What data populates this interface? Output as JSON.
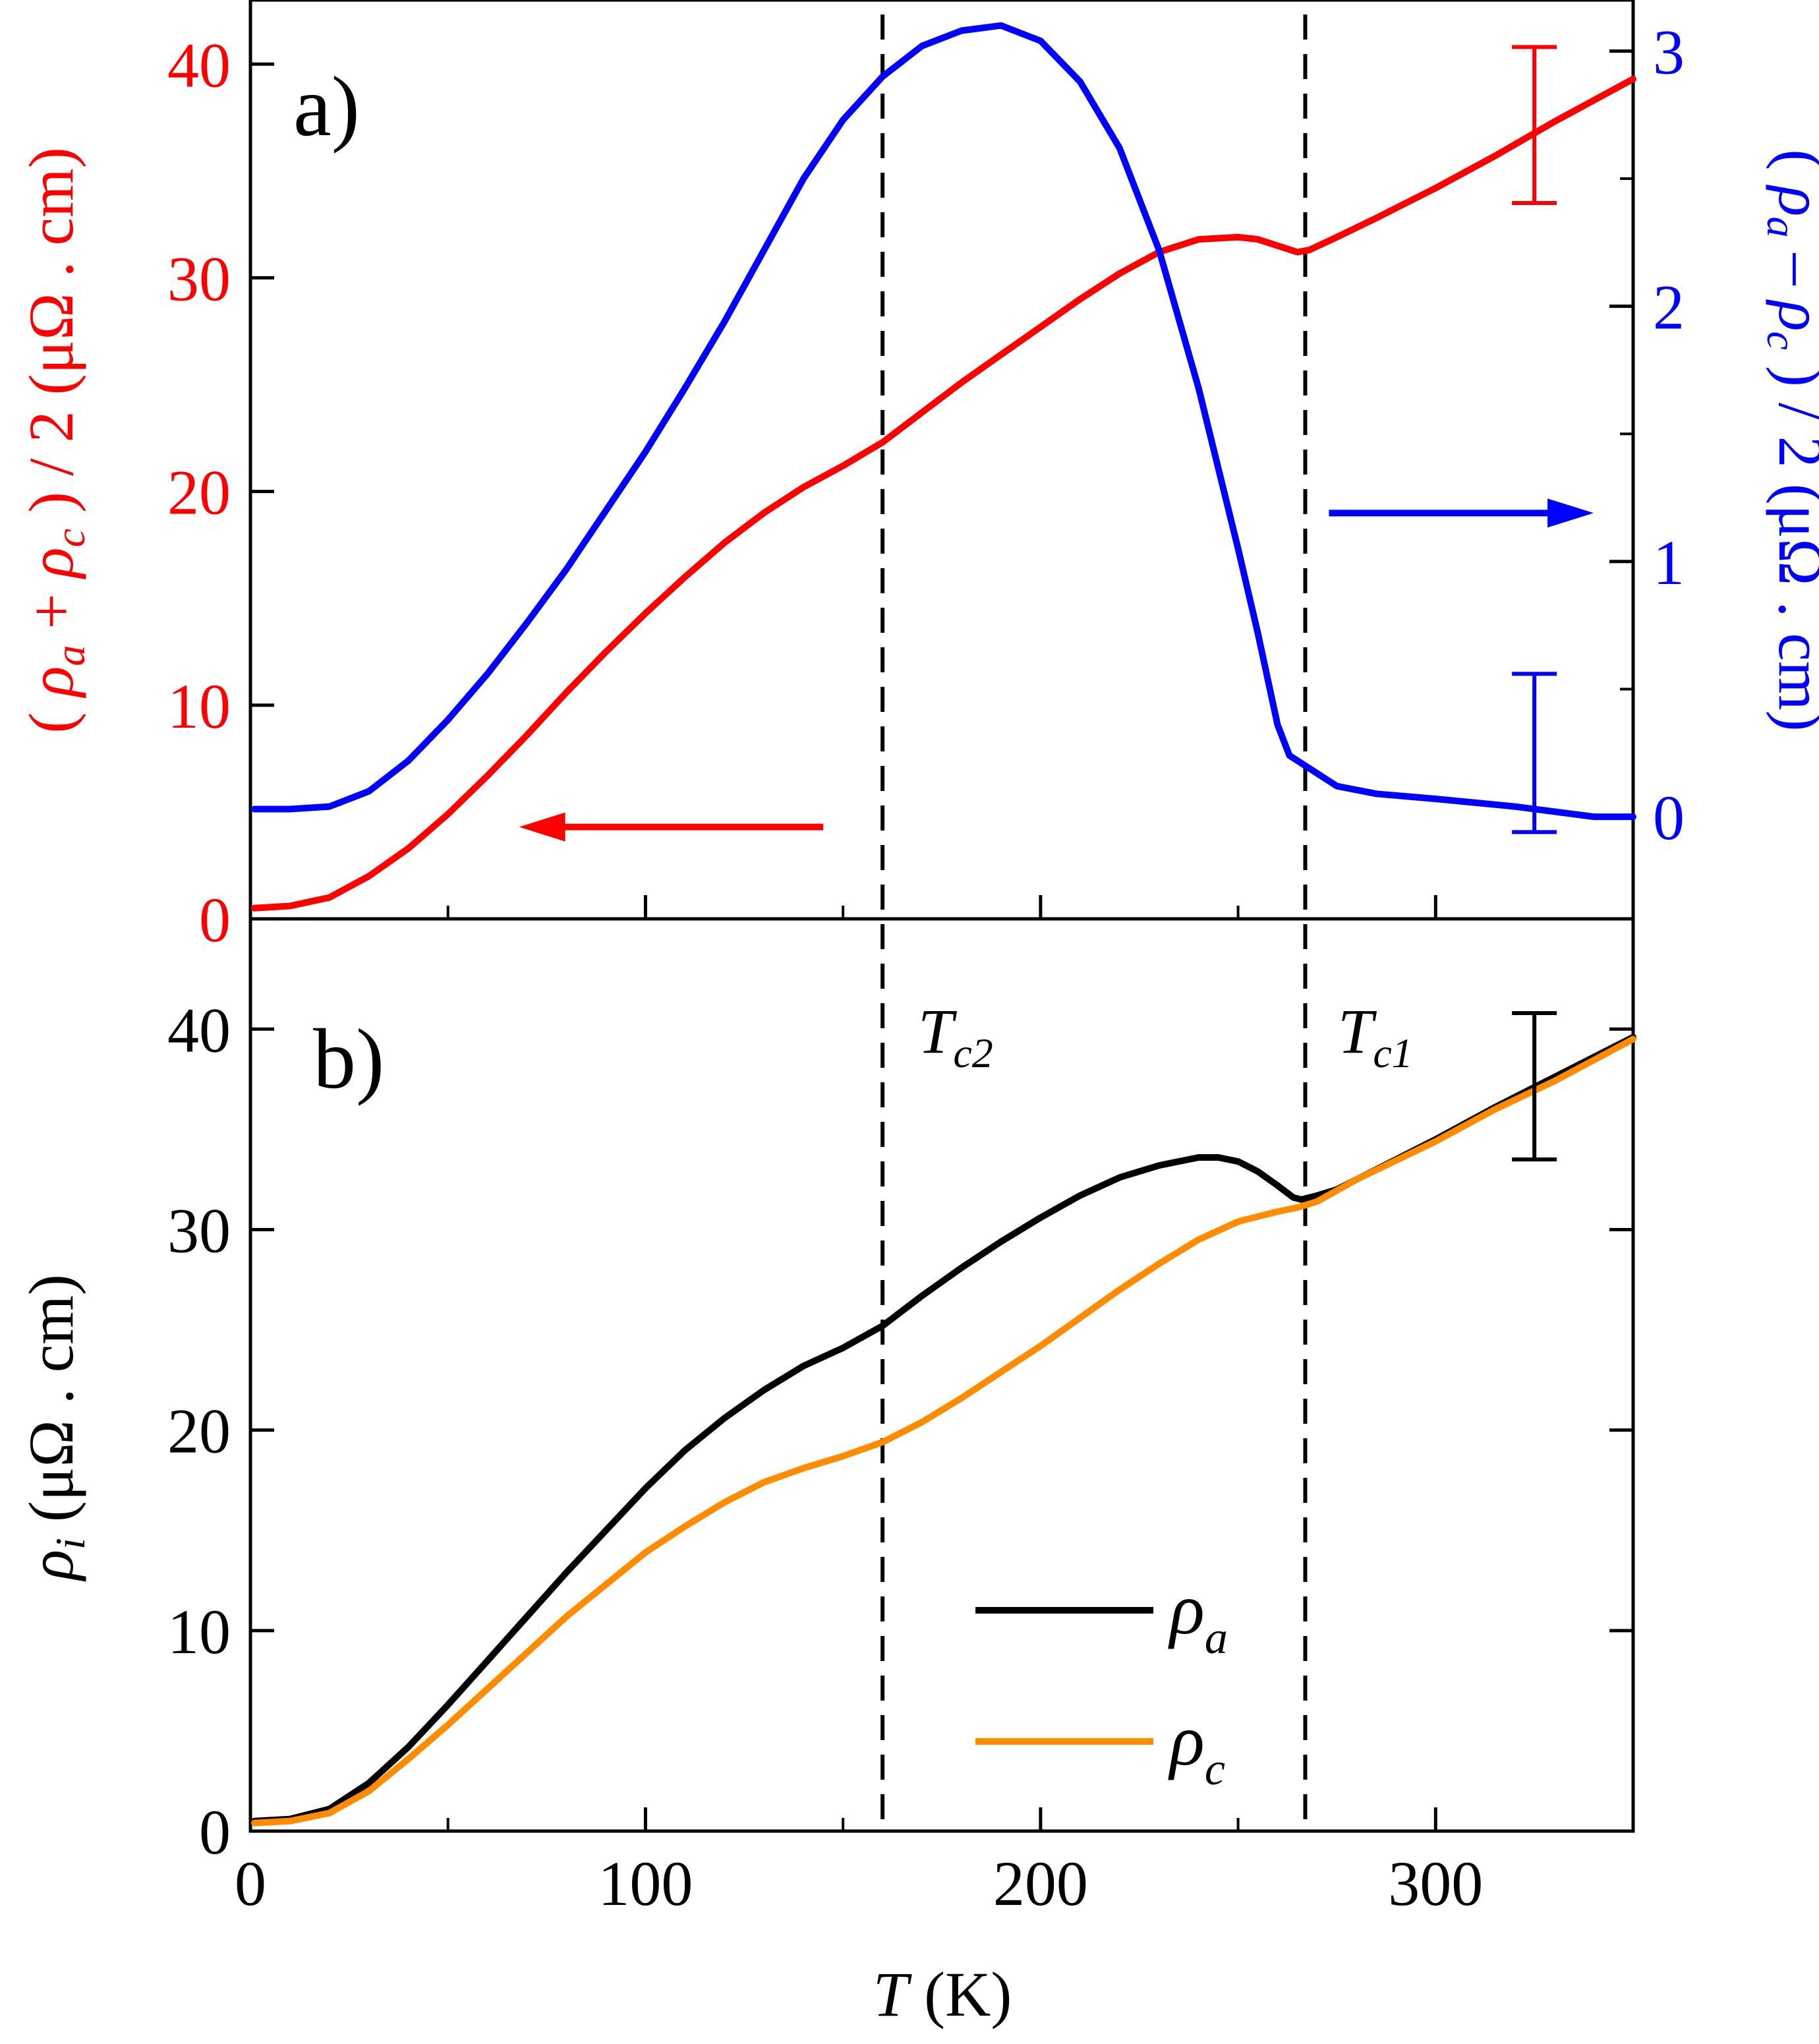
{
  "colors": {
    "red": "#ff0000",
    "blue": "#0000ff",
    "black": "#000000",
    "orange": "#ff8c00"
  },
  "chart_data": [
    {
      "panel": "a)",
      "type": "line",
      "x_range": [
        0,
        350
      ],
      "y_range_left": [
        0,
        43
      ],
      "y_range_right": [
        -0.4,
        3.2
      ],
      "left_axis": {
        "color": "red",
        "ticks": [
          "0",
          "10",
          "20",
          "30",
          "40"
        ],
        "label_parts": [
          "( ",
          "ρ",
          "a",
          " + ",
          "ρ",
          "c",
          " ) / 2 (μΩ . cm)"
        ]
      },
      "right_axis": {
        "color": "blue",
        "ticks": [
          "0",
          "1",
          "2",
          "3"
        ],
        "label_parts": [
          "( ",
          "ρ",
          "a",
          " – ",
          "ρ",
          "c",
          " ) / 2 (μΩ . cm)"
        ]
      },
      "series": [
        {
          "axis": "left",
          "color": "red",
          "x": [
            1,
            10,
            20,
            30,
            40,
            50,
            60,
            70,
            80,
            90,
            100,
            110,
            120,
            130,
            140,
            150,
            160,
            170,
            180,
            190,
            200,
            210,
            220,
            230,
            240,
            250,
            255,
            260,
            265,
            268,
            275,
            285,
            300,
            315,
            330,
            350
          ],
          "y": [
            0.5,
            0.6,
            1.0,
            2.0,
            3.3,
            4.9,
            6.7,
            8.6,
            10.6,
            12.5,
            14.3,
            16.0,
            17.6,
            19.0,
            20.2,
            21.2,
            22.3,
            23.7,
            25.1,
            26.4,
            27.7,
            29.0,
            30.2,
            31.2,
            31.8,
            31.9,
            31.8,
            31.5,
            31.2,
            31.3,
            31.9,
            32.8,
            34.2,
            35.7,
            37.3,
            39.3
          ]
        },
        {
          "axis": "right",
          "color": "blue",
          "x": [
            1,
            10,
            20,
            30,
            40,
            50,
            60,
            70,
            80,
            90,
            100,
            110,
            120,
            130,
            140,
            150,
            160,
            170,
            180,
            190,
            200,
            210,
            220,
            230,
            240,
            250,
            255,
            260,
            263,
            265,
            270,
            275,
            285,
            300,
            320,
            340,
            350
          ],
          "y": [
            0.03,
            0.03,
            0.04,
            0.1,
            0.22,
            0.38,
            0.56,
            0.76,
            0.97,
            1.2,
            1.43,
            1.68,
            1.94,
            2.22,
            2.5,
            2.73,
            2.9,
            3.02,
            3.08,
            3.1,
            3.04,
            2.88,
            2.62,
            2.22,
            1.68,
            1.05,
            0.72,
            0.36,
            0.24,
            0.22,
            0.17,
            0.12,
            0.09,
            0.07,
            0.04,
            0.0,
            0.0
          ]
        }
      ],
      "error_bars": [
        {
          "axis": "left",
          "color": "red",
          "x": 325,
          "low": 33.5,
          "high": 40.8
        },
        {
          "axis": "right",
          "color": "blue",
          "x": 325,
          "low": -0.06,
          "high": 0.56
        }
      ],
      "arrows": [
        {
          "axis": "left",
          "color": "red",
          "from": [
            145,
            4.3
          ],
          "to": [
            68,
            4.3
          ]
        },
        {
          "axis": "right",
          "color": "blue",
          "from": [
            273,
            1.19
          ],
          "to": [
            340,
            1.19
          ]
        }
      ]
    },
    {
      "panel": "b)",
      "type": "line",
      "x_range": [
        0,
        350
      ],
      "y_range": [
        0,
        45.5
      ],
      "xlabel_parts": [
        "T",
        " (K)"
      ],
      "x_ticks": [
        "0",
        "100",
        "200",
        "300"
      ],
      "y_ticks": [
        "0",
        "10",
        "20",
        "30",
        "40"
      ],
      "ylabel_parts": [
        "ρ",
        "i",
        " (μΩ . cm)"
      ],
      "series": [
        {
          "name_parts": [
            "ρ",
            "a"
          ],
          "color": "black",
          "x": [
            1,
            10,
            20,
            30,
            40,
            50,
            60,
            70,
            80,
            90,
            100,
            110,
            120,
            130,
            140,
            150,
            160,
            170,
            180,
            190,
            200,
            210,
            220,
            230,
            240,
            245,
            250,
            255,
            260,
            264,
            266,
            270,
            275,
            285,
            300,
            315,
            330,
            350
          ],
          "y": [
            0.5,
            0.6,
            1.1,
            2.4,
            4.2,
            6.3,
            8.5,
            10.7,
            12.9,
            15.0,
            17.1,
            19.0,
            20.6,
            22.0,
            23.2,
            24.1,
            25.2,
            26.7,
            28.1,
            29.4,
            30.6,
            31.7,
            32.6,
            33.2,
            33.6,
            33.6,
            33.4,
            32.9,
            32.2,
            31.6,
            31.5,
            31.7,
            32.0,
            33.0,
            34.5,
            36.1,
            37.6,
            39.6
          ]
        },
        {
          "name_parts": [
            "ρ",
            "c"
          ],
          "color": "orange",
          "x": [
            1,
            10,
            20,
            30,
            40,
            50,
            60,
            70,
            80,
            90,
            100,
            110,
            120,
            130,
            140,
            150,
            160,
            170,
            180,
            190,
            200,
            210,
            220,
            230,
            240,
            250,
            260,
            265,
            270,
            280,
            300,
            315,
            330,
            350
          ],
          "y": [
            0.4,
            0.5,
            0.9,
            2.0,
            3.6,
            5.3,
            7.1,
            8.9,
            10.7,
            12.3,
            13.9,
            15.2,
            16.4,
            17.4,
            18.1,
            18.7,
            19.4,
            20.4,
            21.6,
            22.9,
            24.2,
            25.6,
            27.0,
            28.3,
            29.5,
            30.4,
            30.9,
            31.1,
            31.4,
            32.5,
            34.4,
            36.0,
            37.4,
            39.5
          ]
        }
      ],
      "error_bars": [
        {
          "color": "black",
          "x": 325,
          "low": 33.5,
          "high": 40.8
        }
      ],
      "legend_position": "bottom-right"
    }
  ],
  "transitions": [
    {
      "x": 160,
      "label_parts": [
        "T",
        "c2"
      ]
    },
    {
      "x": 267,
      "label_parts": [
        "T",
        "c1"
      ]
    }
  ]
}
